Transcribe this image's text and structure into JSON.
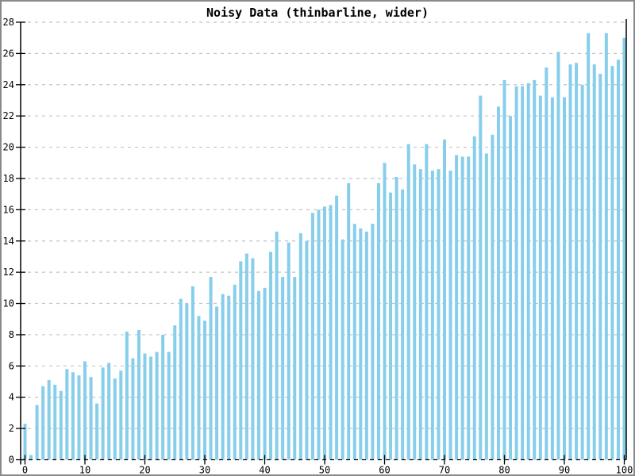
{
  "window": {
    "background_color": "#ffffff",
    "border_color": "#8a8a8a"
  },
  "chart_data": {
    "type": "bar",
    "title": "Noisy Data (thinbarline, wider)",
    "xlabel": "",
    "ylabel": "",
    "legend": null,
    "grid": true,
    "grid_color": "#c4c4c4",
    "axis_color": "#000000",
    "bar_color": "#87CEEB",
    "x_start": 0,
    "x_step": 1,
    "xlim": [
      -0.75,
      100.35
    ],
    "ylim": [
      0,
      28
    ],
    "x_ticks": [
      0,
      10,
      20,
      30,
      40,
      50,
      60,
      70,
      80,
      90,
      100
    ],
    "y_ticks": [
      0,
      2,
      4,
      6,
      8,
      10,
      12,
      14,
      16,
      18,
      20,
      22,
      24,
      26,
      28
    ],
    "values": [
      2.3,
      0.3,
      3.5,
      4.7,
      5.1,
      4.8,
      4.4,
      5.8,
      5.6,
      5.4,
      6.3,
      5.3,
      3.6,
      5.9,
      6.2,
      5.2,
      5.7,
      8.2,
      6.5,
      8.3,
      6.8,
      6.6,
      6.9,
      8.0,
      6.9,
      8.6,
      10.3,
      10.0,
      11.1,
      9.2,
      8.9,
      11.7,
      9.8,
      10.6,
      10.5,
      11.2,
      12.7,
      13.2,
      12.9,
      10.8,
      11.0,
      13.3,
      14.6,
      11.7,
      13.9,
      11.7,
      14.5,
      14.0,
      15.8,
      16.0,
      16.2,
      16.3,
      16.9,
      14.1,
      17.7,
      15.1,
      14.8,
      14.6,
      15.1,
      17.7,
      19.0,
      17.1,
      18.1,
      17.3,
      20.2,
      18.9,
      18.6,
      20.2,
      18.5,
      18.6,
      20.5,
      18.5,
      19.5,
      19.4,
      19.4,
      20.7,
      23.3,
      19.6,
      20.8,
      22.6,
      24.3,
      22.0,
      23.9,
      23.9,
      24.1,
      24.3,
      23.3,
      25.1,
      23.2,
      26.1,
      23.2,
      25.3,
      25.4,
      24.0,
      27.3,
      25.3,
      24.7,
      27.3,
      25.2,
      25.6,
      27.0
    ]
  }
}
